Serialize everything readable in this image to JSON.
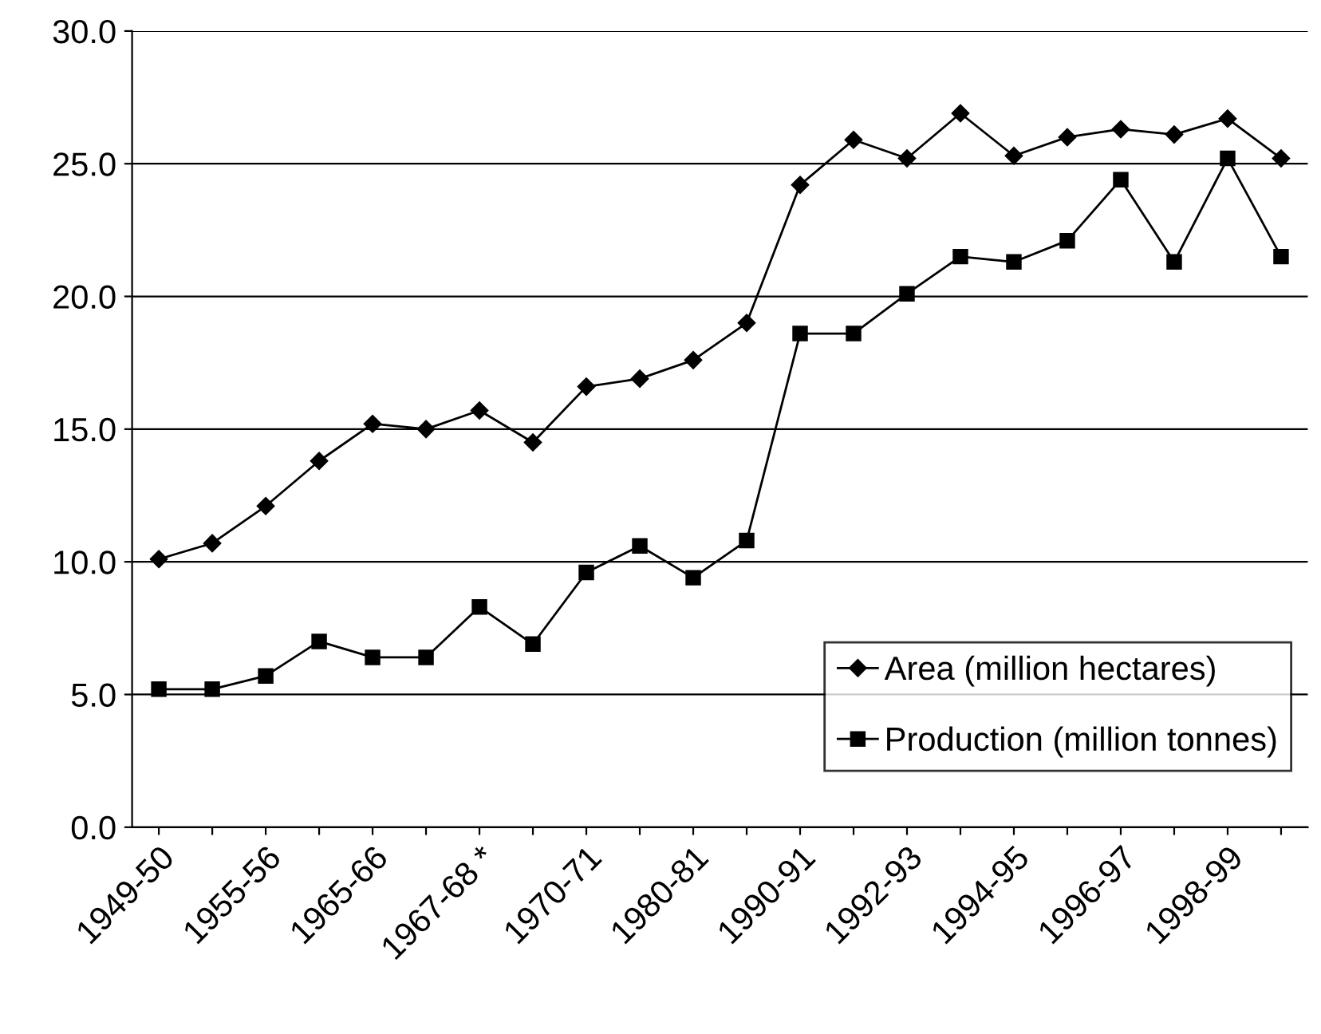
{
  "chart_data": {
    "type": "line",
    "categories": [
      "1949-50",
      null,
      "1955-56",
      null,
      "1965-66",
      null,
      "1967-68 *",
      null,
      "1970-71",
      null,
      "1980-81",
      null,
      "1990-91",
      null,
      "1992-93",
      null,
      "1994-95",
      null,
      "1996-97",
      null,
      "1998-99",
      null
    ],
    "series": [
      {
        "name": "Area (million hectares)",
        "color": "#000000",
        "marker": "diamond",
        "values": [
          10.1,
          10.7,
          12.1,
          13.8,
          15.2,
          15.0,
          15.7,
          14.5,
          16.6,
          16.9,
          17.6,
          19.0,
          24.2,
          25.9,
          25.2,
          26.9,
          25.3,
          26.0,
          26.3,
          26.1,
          26.7,
          25.2
        ]
      },
      {
        "name": "Production (million tonnes)",
        "color": "#000000",
        "marker": "square",
        "values": [
          5.2,
          5.2,
          5.7,
          7.0,
          6.4,
          6.4,
          8.3,
          6.9,
          9.6,
          10.6,
          9.4,
          10.8,
          18.6,
          18.6,
          20.1,
          21.5,
          21.3,
          22.1,
          24.4,
          21.3,
          25.2,
          21.5
        ]
      }
    ],
    "ylim": [
      0,
      30
    ],
    "yticks": [
      {
        "value": 0,
        "label": "0.0"
      },
      {
        "value": 5,
        "label": "5.0"
      },
      {
        "value": 10,
        "label": "10.0"
      },
      {
        "value": 15,
        "label": "15.0"
      },
      {
        "value": 20,
        "label": "20.0"
      },
      {
        "value": 25,
        "label": "25.0"
      },
      {
        "value": 30,
        "label": "30.0"
      }
    ],
    "grid": "y",
    "legend": "bottom right",
    "line_style": "solid"
  }
}
